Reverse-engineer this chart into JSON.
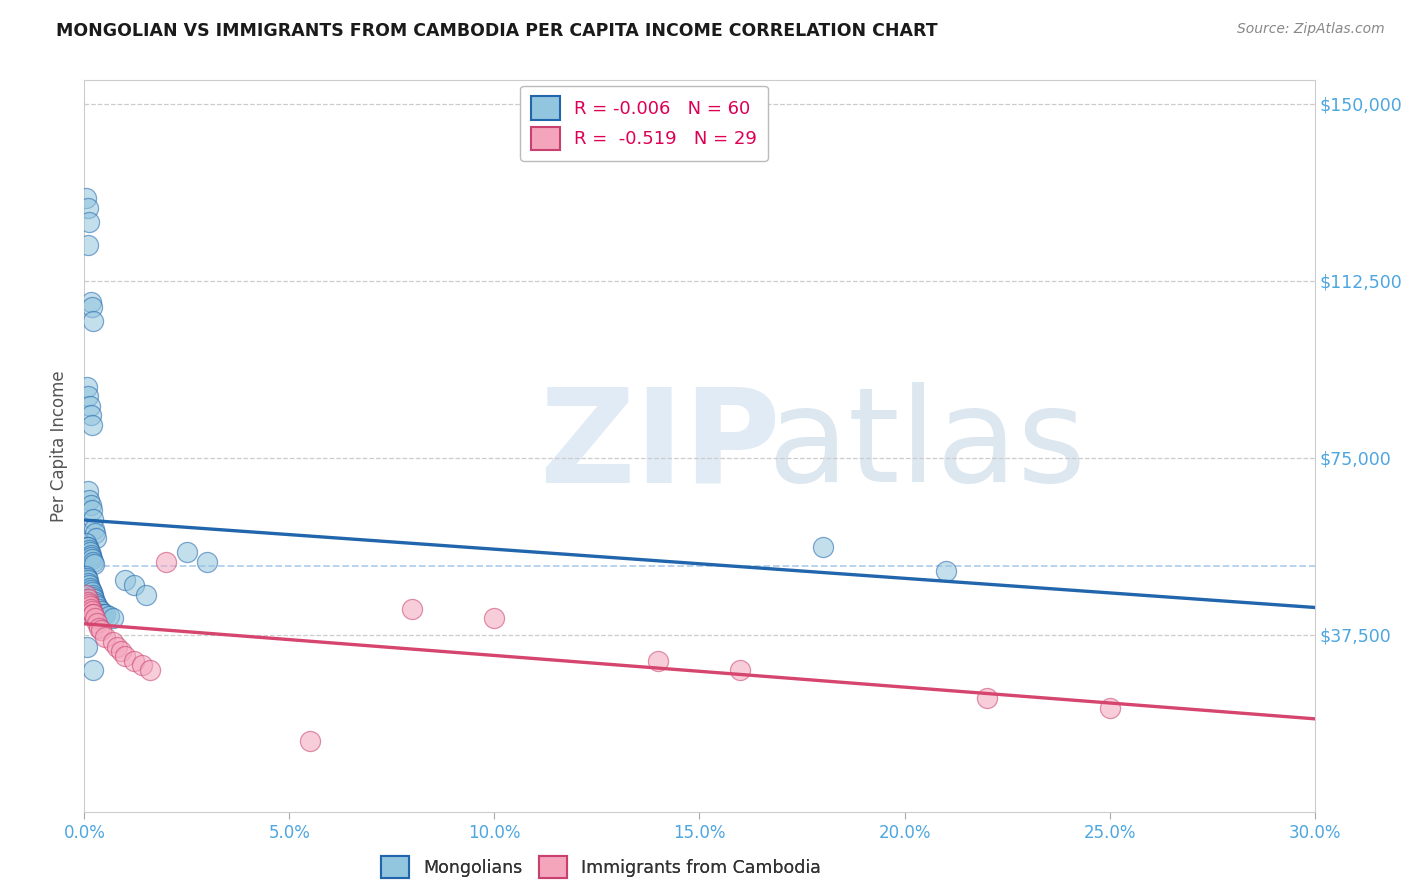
{
  "title": "MONGOLIAN VS IMMIGRANTS FROM CAMBODIA PER CAPITA INCOME CORRELATION CHART",
  "source": "Source: ZipAtlas.com",
  "ylabel": "Per Capita Income",
  "ytick_vals": [
    37500,
    75000,
    112500,
    150000
  ],
  "ytick_labels": [
    "$37,500",
    "$75,000",
    "$112,500",
    "$150,000"
  ],
  "xtick_vals": [
    0.0,
    0.05,
    0.1,
    0.15,
    0.2,
    0.25,
    0.3
  ],
  "xtick_labels": [
    "0.0%",
    "5.0%",
    "10.0%",
    "15.0%",
    "20.0%",
    "25.0%",
    "30.0%"
  ],
  "xlim": [
    0.0,
    0.3
  ],
  "ylim": [
    0,
    155000
  ],
  "mongolian_color": "#92c5de",
  "cambodian_color": "#f4a5bc",
  "mongolian_edge_color": "#2166ac",
  "cambodian_edge_color": "#c94070",
  "mongolian_trend_color": "#2166ac",
  "cambodian_trend_color": "#d6456e",
  "label_color": "#4da6e0",
  "mongolian_R": "-0.006",
  "mongolian_N": "60",
  "cambodian_R": "-0.519",
  "cambodian_N": "29",
  "dashed_line_y": 52000,
  "background_color": "#ffffff",
  "mongolian_x": [
    0.0008,
    0.0015,
    0.0018,
    0.0022,
    0.0005,
    0.0009,
    0.0011,
    0.0006,
    0.001,
    0.0013,
    0.0016,
    0.0019,
    0.0008,
    0.0012,
    0.0015,
    0.0018,
    0.0021,
    0.0023,
    0.0025,
    0.0028,
    0.0005,
    0.0007,
    0.0009,
    0.0011,
    0.0013,
    0.0015,
    0.0017,
    0.0019,
    0.0021,
    0.0023,
    0.0004,
    0.0006,
    0.0008,
    0.001,
    0.0012,
    0.0014,
    0.0016,
    0.0018,
    0.002,
    0.0022,
    0.0024,
    0.0026,
    0.0028,
    0.003,
    0.0035,
    0.004,
    0.0045,
    0.005,
    0.006,
    0.007,
    0.01,
    0.012,
    0.015,
    0.025,
    0.03,
    0.18,
    0.21,
    0.0006,
    0.0008,
    0.002
  ],
  "mongolian_y": [
    120000,
    108000,
    107000,
    104000,
    130000,
    128000,
    125000,
    90000,
    88000,
    86000,
    84000,
    82000,
    68000,
    66000,
    65000,
    64000,
    62000,
    60000,
    59000,
    58000,
    57000,
    56000,
    56000,
    55500,
    55000,
    54500,
    54000,
    53500,
    53000,
    52500,
    50000,
    49500,
    49000,
    48500,
    48000,
    47500,
    47000,
    46500,
    46000,
    45500,
    45000,
    44500,
    44000,
    43500,
    43000,
    42500,
    42000,
    42000,
    41500,
    41000,
    49000,
    48000,
    46000,
    55000,
    53000,
    56000,
    51000,
    35000,
    42000,
    30000
  ],
  "cambodian_x": [
    0.0005,
    0.0008,
    0.001,
    0.0012,
    0.0014,
    0.0016,
    0.0018,
    0.002,
    0.0022,
    0.0025,
    0.003,
    0.0035,
    0.004,
    0.005,
    0.007,
    0.008,
    0.009,
    0.01,
    0.012,
    0.014,
    0.016,
    0.02,
    0.055,
    0.08,
    0.1,
    0.14,
    0.16,
    0.22,
    0.25
  ],
  "cambodian_y": [
    46000,
    45000,
    44500,
    44000,
    43500,
    43000,
    42500,
    42000,
    42000,
    41000,
    40000,
    39000,
    38500,
    37000,
    36000,
    35000,
    34000,
    33000,
    32000,
    31000,
    30000,
    53000,
    15000,
    43000,
    41000,
    32000,
    30000,
    24000,
    22000
  ]
}
